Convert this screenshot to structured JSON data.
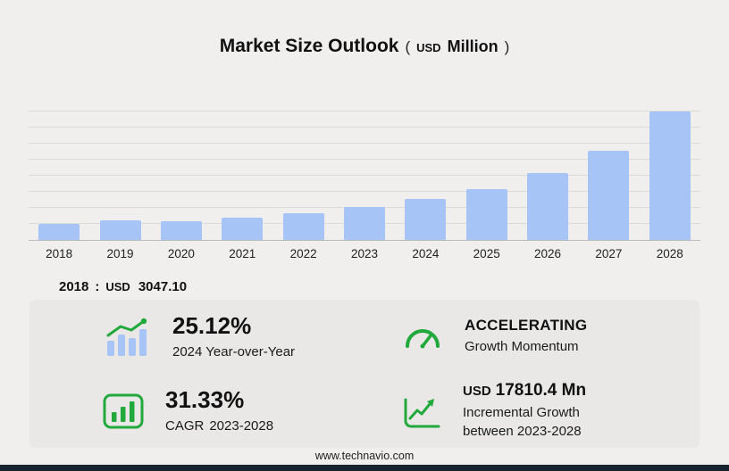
{
  "header": {
    "title": "Market Size Outlook",
    "unit_open": "(",
    "unit_currency": "USD",
    "unit_scale": "Million",
    "unit_close": ")"
  },
  "chart_data": {
    "type": "bar",
    "title": "Market Size Outlook (USD Million)",
    "categories": [
      "2018",
      "2019",
      "2020",
      "2021",
      "2022",
      "2023",
      "2024",
      "2025",
      "2026",
      "2027",
      "2028"
    ],
    "values": [
      3047.1,
      3600,
      3500,
      4100,
      5000,
      6130,
      7670,
      9550,
      12500,
      16700,
      23940
    ],
    "xlabel": "",
    "ylabel": "USD Million",
    "ylim": [
      0,
      24000
    ],
    "gridlines": 8,
    "grid": true,
    "legend": "none",
    "bar_color": "#a7c4f6"
  },
  "baseline_note": {
    "year": "2018",
    "separator": ":",
    "currency": "USD",
    "value": "3047.10"
  },
  "stats": {
    "yoy": {
      "value": "25.12%",
      "label": "2024 Year-over-Year"
    },
    "momentum": {
      "value": "ACCELERATING",
      "label": "Growth Momentum"
    },
    "cagr": {
      "value": "31.33%",
      "label_prefix": "CAGR",
      "label_range": "2023-2028"
    },
    "incremental": {
      "currency": "USD",
      "value": "17810.4 Mn",
      "label_line1": "Incremental Growth",
      "label_line2": "between 2023-2028"
    }
  },
  "footer": {
    "website": "www.technavio.com"
  },
  "colors": {
    "bar": "#a7c4f6",
    "icon_green": "#22a93c",
    "panel_bg": "#e9e8e7",
    "page_bg": "#f0efee",
    "bottom_bar": "#16232f"
  }
}
